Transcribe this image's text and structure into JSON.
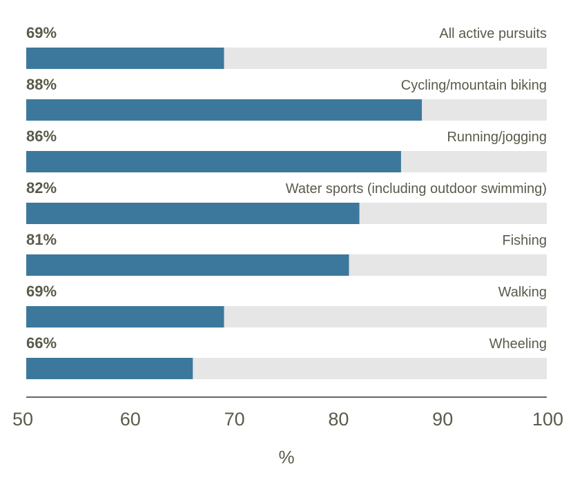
{
  "chart_data": {
    "type": "bar",
    "orientation": "horizontal",
    "categories": [
      "All active pursuits",
      "Cycling/mountain biking",
      "Running/jogging",
      "Water sports (including outdoor swimming)",
      "Fishing",
      "Walking",
      "Wheeling"
    ],
    "values": [
      69,
      88,
      86,
      82,
      81,
      69,
      66
    ],
    "value_labels": [
      "69%",
      "88%",
      "86%",
      "82%",
      "81%",
      "69%",
      "66%"
    ],
    "xlabel": "%",
    "xlim": [
      50,
      100
    ],
    "xticks": [
      50,
      60,
      70,
      80,
      90,
      100
    ],
    "xtick_labels": [
      "50",
      "60",
      "70",
      "80",
      "90",
      "100"
    ],
    "grid": false,
    "legend": "none"
  },
  "colors": {
    "bar": "#3c789c",
    "track": "#e6e6e6",
    "text": "#5a5a4a",
    "axis": "#333333"
  }
}
